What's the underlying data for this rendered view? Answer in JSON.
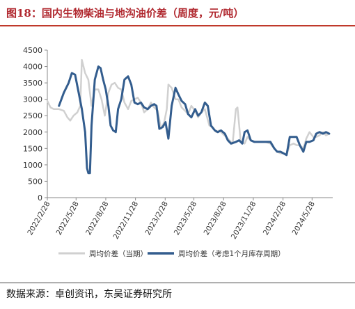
{
  "header": {
    "title": "图18：国内生物柴油与地沟油价差（周度，元/吨）"
  },
  "footer": {
    "source": "数据来源：卓创资讯，东吴证券研究所"
  },
  "colors": {
    "title": "#b0272e",
    "series_current": "#d0d0d0",
    "series_lagged": "#335d8e",
    "axis": "#888888"
  },
  "chart_data": {
    "type": "line",
    "ylim": [
      0,
      4500
    ],
    "yticks": [
      0,
      500,
      1000,
      1500,
      2000,
      2500,
      3000,
      3500,
      4000,
      4500
    ],
    "xlim": [
      "2022-02-28",
      "2024-07-31"
    ],
    "xticks": [
      "2022/2/28",
      "2022/5/28",
      "2022/8/28",
      "2022/11/28",
      "2023/2/28",
      "2023/5/28",
      "2023/8/28",
      "2023/11/28",
      "2024/2/28",
      "2024/5/28"
    ],
    "grid": false,
    "legend_position": "bottom",
    "series": [
      {
        "name": "周均价差（当期）",
        "points": [
          [
            "2022-02-28",
            2950
          ],
          [
            "2022-03-10",
            2750
          ],
          [
            "2022-03-20",
            2700
          ],
          [
            "2022-04-05",
            2700
          ],
          [
            "2022-04-20",
            2650
          ],
          [
            "2022-05-01",
            2450
          ],
          [
            "2022-05-10",
            2350
          ],
          [
            "2022-05-20",
            2500
          ],
          [
            "2022-06-01",
            2600
          ],
          [
            "2022-06-10",
            2800
          ],
          [
            "2022-06-15",
            4200
          ],
          [
            "2022-06-25",
            3800
          ],
          [
            "2022-07-05",
            3600
          ],
          [
            "2022-07-15",
            2800
          ],
          [
            "2022-07-25",
            3300
          ],
          [
            "2022-08-05",
            3300
          ],
          [
            "2022-08-15",
            3000
          ],
          [
            "2022-08-25",
            2500
          ],
          [
            "2022-09-05",
            3200
          ],
          [
            "2022-09-15",
            3450
          ],
          [
            "2022-09-25",
            3500
          ],
          [
            "2022-10-05",
            3350
          ],
          [
            "2022-10-15",
            3300
          ],
          [
            "2022-10-25",
            2900
          ],
          [
            "2022-11-05",
            2700
          ],
          [
            "2022-11-15",
            2950
          ],
          [
            "2022-11-25",
            3000
          ],
          [
            "2022-12-05",
            3050
          ],
          [
            "2022-12-15",
            2900
          ],
          [
            "2022-12-25",
            2600
          ],
          [
            "2023-01-05",
            2700
          ],
          [
            "2023-01-15",
            2900
          ],
          [
            "2023-01-25",
            2750
          ],
          [
            "2023-02-05",
            2650
          ],
          [
            "2023-02-15",
            2100
          ],
          [
            "2023-02-25",
            2300
          ],
          [
            "2023-03-05",
            2700
          ],
          [
            "2023-03-10",
            3450
          ],
          [
            "2023-03-20",
            3350
          ],
          [
            "2023-04-01",
            3000
          ],
          [
            "2023-04-10",
            3000
          ],
          [
            "2023-04-20",
            2750
          ],
          [
            "2023-05-01",
            2650
          ],
          [
            "2023-05-10",
            2550
          ],
          [
            "2023-05-20",
            2800
          ],
          [
            "2023-06-01",
            2650
          ],
          [
            "2023-06-10",
            2450
          ],
          [
            "2023-06-20",
            2600
          ],
          [
            "2023-07-01",
            2700
          ],
          [
            "2023-07-15",
            2200
          ],
          [
            "2023-07-25",
            2150
          ],
          [
            "2023-08-05",
            2000
          ],
          [
            "2023-08-15",
            2050
          ],
          [
            "2023-08-25",
            1950
          ],
          [
            "2023-09-05",
            1850
          ],
          [
            "2023-09-15",
            1750
          ],
          [
            "2023-09-25",
            1650
          ],
          [
            "2023-10-05",
            2700
          ],
          [
            "2023-10-10",
            2750
          ],
          [
            "2023-10-20",
            1700
          ],
          [
            "2023-11-01",
            1650
          ],
          [
            "2023-11-10",
            1850
          ],
          [
            "2023-11-20",
            1750
          ],
          [
            "2023-12-05",
            1700
          ],
          [
            "2023-12-20",
            1700
          ],
          [
            "2024-01-05",
            1700
          ],
          [
            "2024-01-20",
            1650
          ],
          [
            "2024-02-01",
            1500
          ],
          [
            "2024-02-10",
            1400
          ],
          [
            "2024-02-20",
            1350
          ],
          [
            "2024-03-01",
            1350
          ],
          [
            "2024-03-10",
            1300
          ],
          [
            "2024-03-20",
            1600
          ],
          [
            "2024-04-01",
            1650
          ],
          [
            "2024-04-10",
            1600
          ],
          [
            "2024-04-20",
            1600
          ],
          [
            "2024-05-01",
            1500
          ],
          [
            "2024-05-10",
            1800
          ],
          [
            "2024-05-20",
            2000
          ],
          [
            "2024-06-01",
            1850
          ],
          [
            "2024-06-10",
            1850
          ],
          [
            "2024-06-20",
            1900
          ],
          [
            "2024-07-01",
            2000
          ],
          [
            "2024-07-10",
            1900
          ],
          [
            "2024-07-20",
            1950
          ]
        ]
      },
      {
        "name": "周均价差（考虑1个月库存周期）",
        "points": [
          [
            "2022-04-05",
            2800
          ],
          [
            "2022-04-20",
            3200
          ],
          [
            "2022-05-05",
            3500
          ],
          [
            "2022-05-15",
            3800
          ],
          [
            "2022-05-25",
            3750
          ],
          [
            "2022-06-05",
            3200
          ],
          [
            "2022-06-15",
            2700
          ],
          [
            "2022-06-25",
            2000
          ],
          [
            "2022-07-01",
            900
          ],
          [
            "2022-07-05",
            750
          ],
          [
            "2022-07-10",
            750
          ],
          [
            "2022-07-15",
            2200
          ],
          [
            "2022-07-25",
            3600
          ],
          [
            "2022-08-05",
            4000
          ],
          [
            "2022-08-12",
            3950
          ],
          [
            "2022-08-20",
            3600
          ],
          [
            "2022-08-28",
            3300
          ],
          [
            "2022-09-05",
            2800
          ],
          [
            "2022-09-12",
            2200
          ],
          [
            "2022-09-20",
            2050
          ],
          [
            "2022-09-28",
            2000
          ],
          [
            "2022-10-05",
            2700
          ],
          [
            "2022-10-15",
            3000
          ],
          [
            "2022-10-25",
            3600
          ],
          [
            "2022-11-05",
            3700
          ],
          [
            "2022-11-15",
            3450
          ],
          [
            "2022-11-25",
            2900
          ],
          [
            "2022-12-05",
            2850
          ],
          [
            "2022-12-15",
            2900
          ],
          [
            "2022-12-25",
            2750
          ],
          [
            "2023-01-05",
            2700
          ],
          [
            "2023-01-15",
            2800
          ],
          [
            "2023-01-25",
            2850
          ],
          [
            "2023-02-01",
            2800
          ],
          [
            "2023-02-10",
            2100
          ],
          [
            "2023-02-20",
            2150
          ],
          [
            "2023-03-01",
            2300
          ],
          [
            "2023-03-10",
            1800
          ],
          [
            "2023-03-20",
            2800
          ],
          [
            "2023-04-01",
            3350
          ],
          [
            "2023-04-10",
            3150
          ],
          [
            "2023-04-20",
            2950
          ],
          [
            "2023-05-01",
            2850
          ],
          [
            "2023-05-10",
            2550
          ],
          [
            "2023-05-20",
            2450
          ],
          [
            "2023-06-01",
            2700
          ],
          [
            "2023-06-10",
            2500
          ],
          [
            "2023-06-20",
            2600
          ],
          [
            "2023-07-01",
            2900
          ],
          [
            "2023-07-10",
            2800
          ],
          [
            "2023-07-20",
            2200
          ],
          [
            "2023-08-01",
            2050
          ],
          [
            "2023-08-10",
            2000
          ],
          [
            "2023-08-20",
            2050
          ],
          [
            "2023-09-01",
            1950
          ],
          [
            "2023-09-10",
            1750
          ],
          [
            "2023-09-20",
            1650
          ],
          [
            "2023-10-05",
            1700
          ],
          [
            "2023-10-15",
            1750
          ],
          [
            "2023-10-25",
            1650
          ],
          [
            "2023-11-01",
            2000
          ],
          [
            "2023-11-10",
            2050
          ],
          [
            "2023-11-20",
            1750
          ],
          [
            "2023-12-01",
            1700
          ],
          [
            "2023-12-20",
            1700
          ],
          [
            "2024-01-05",
            1700
          ],
          [
            "2024-01-20",
            1700
          ],
          [
            "2024-02-01",
            1500
          ],
          [
            "2024-02-10",
            1400
          ],
          [
            "2024-02-20",
            1400
          ],
          [
            "2024-03-01",
            1350
          ],
          [
            "2024-03-10",
            1300
          ],
          [
            "2024-03-20",
            1850
          ],
          [
            "2024-04-01",
            1850
          ],
          [
            "2024-04-10",
            1850
          ],
          [
            "2024-04-20",
            1600
          ],
          [
            "2024-05-01",
            1400
          ],
          [
            "2024-05-10",
            1700
          ],
          [
            "2024-05-20",
            1700
          ],
          [
            "2024-06-01",
            1750
          ],
          [
            "2024-06-10",
            1950
          ],
          [
            "2024-06-20",
            2000
          ],
          [
            "2024-07-01",
            1950
          ],
          [
            "2024-07-10",
            2000
          ],
          [
            "2024-07-20",
            1950
          ]
        ]
      }
    ]
  }
}
